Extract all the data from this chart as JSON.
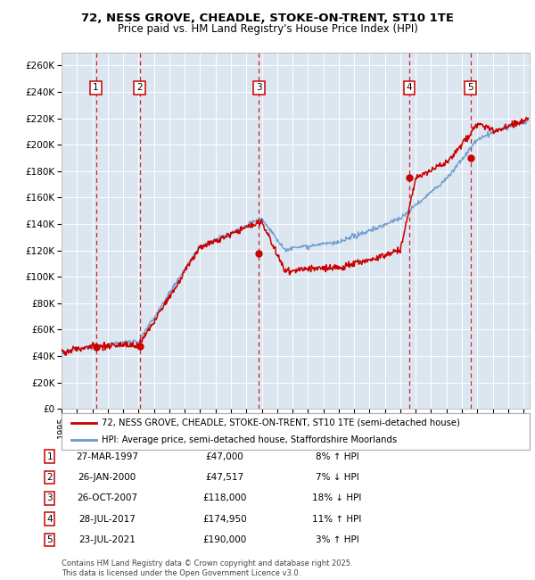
{
  "title": "72, NESS GROVE, CHEADLE, STOKE-ON-TRENT, ST10 1TE",
  "subtitle": "Price paid vs. HM Land Registry's House Price Index (HPI)",
  "ylim": [
    0,
    270000
  ],
  "yticks": [
    0,
    20000,
    40000,
    60000,
    80000,
    100000,
    120000,
    140000,
    160000,
    180000,
    200000,
    220000,
    240000,
    260000
  ],
  "ytick_labels": [
    "£0",
    "£20K",
    "£40K",
    "£60K",
    "£80K",
    "£100K",
    "£120K",
    "£140K",
    "£160K",
    "£180K",
    "£200K",
    "£220K",
    "£240K",
    "£260K"
  ],
  "plot_bg_color": "#dce6f1",
  "grid_color": "#ffffff",
  "hpi_line_color": "#6699cc",
  "price_line_color": "#cc0000",
  "sale_marker_color": "#cc0000",
  "vline_color": "#cc0000",
  "sale_dates_year": [
    1997.23,
    2000.07,
    2007.82,
    2017.57,
    2021.56
  ],
  "sale_prices": [
    47000,
    47517,
    118000,
    174950,
    190000
  ],
  "sale_labels": [
    "1",
    "2",
    "3",
    "4",
    "5"
  ],
  "label_box_color": "#ffffff",
  "label_box_edge": "#cc0000",
  "legend_line1": "72, NESS GROVE, CHEADLE, STOKE-ON-TRENT, ST10 1TE (semi-detached house)",
  "legend_line2": "HPI: Average price, semi-detached house, Staffordshire Moorlands",
  "table_data": [
    [
      "1",
      "27-MAR-1997",
      "£47,000",
      "8% ↑ HPI"
    ],
    [
      "2",
      "26-JAN-2000",
      "£47,517",
      "7% ↓ HPI"
    ],
    [
      "3",
      "26-OCT-2007",
      "£118,000",
      "18% ↓ HPI"
    ],
    [
      "4",
      "28-JUL-2017",
      "£174,950",
      "11% ↑ HPI"
    ],
    [
      "5",
      "23-JUL-2021",
      "£190,000",
      "3% ↑ HPI"
    ]
  ],
  "footer": "Contains HM Land Registry data © Crown copyright and database right 2025.\nThis data is licensed under the Open Government Licence v3.0."
}
